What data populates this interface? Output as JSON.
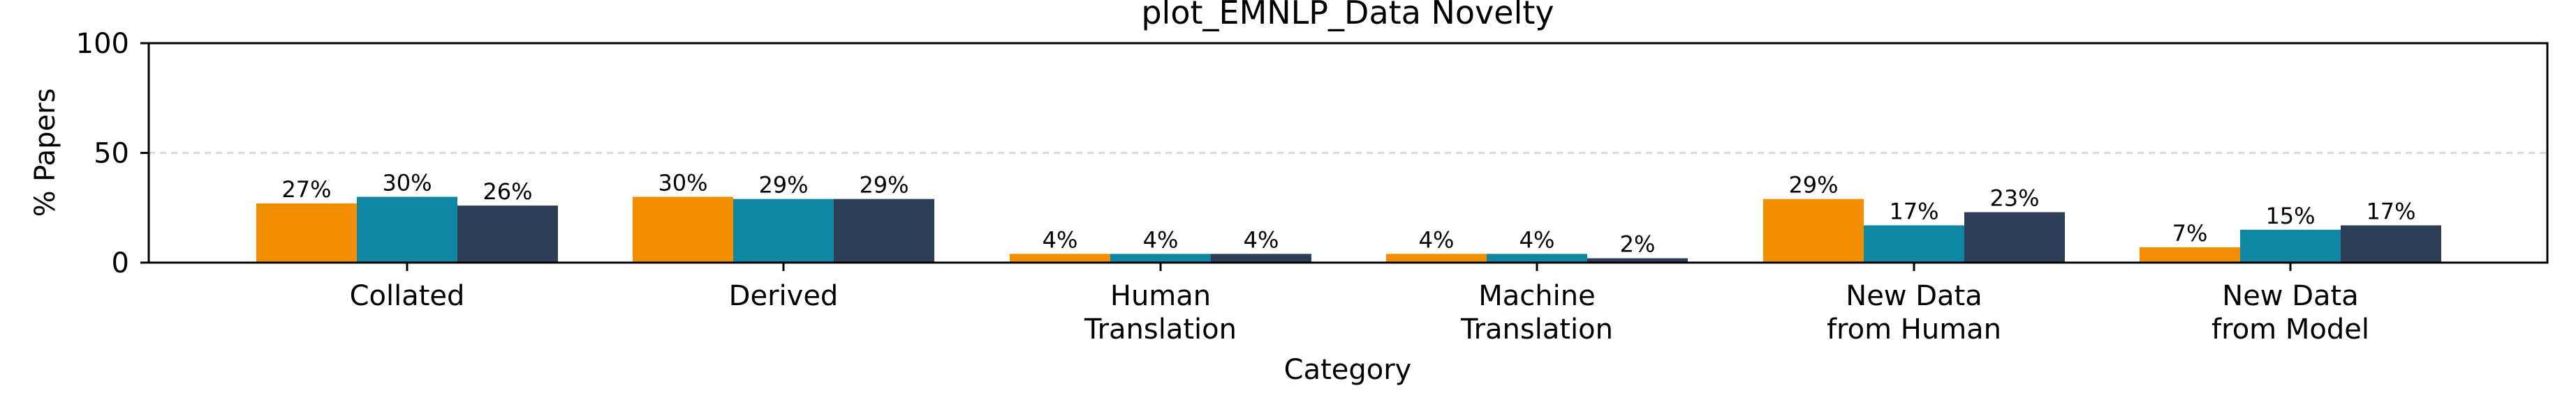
{
  "chart_data": {
    "type": "bar",
    "title": "plot_EMNLP_Data Novelty",
    "xlabel": "Category",
    "ylabel": "% Papers",
    "ylim": [
      0,
      100
    ],
    "yticks": [
      0,
      50,
      100
    ],
    "grid": {
      "enabled": true,
      "values": [
        50
      ],
      "style": "dashed"
    },
    "categories": [
      [
        "Collated"
      ],
      [
        "Derived"
      ],
      [
        "Human",
        "Translation"
      ],
      [
        "Machine",
        "Translation"
      ],
      [
        "New Data",
        "from Human"
      ],
      [
        "New Data",
        "from Model"
      ]
    ],
    "series": [
      {
        "color": "#F28E00",
        "values": [
          27,
          30,
          4,
          4,
          29,
          7
        ],
        "labels": [
          "27%",
          "30%",
          "4%",
          "4%",
          "29%",
          "7%"
        ]
      },
      {
        "color": "#0E86A4",
        "values": [
          30,
          29,
          4,
          4,
          17,
          15
        ],
        "labels": [
          "30%",
          "29%",
          "4%",
          "4%",
          "17%",
          "15%"
        ]
      },
      {
        "color": "#2D3E56",
        "values": [
          26,
          29,
          4,
          2,
          23,
          17
        ],
        "labels": [
          "26%",
          "29%",
          "4%",
          "2%",
          "23%",
          "17%"
        ]
      }
    ]
  }
}
